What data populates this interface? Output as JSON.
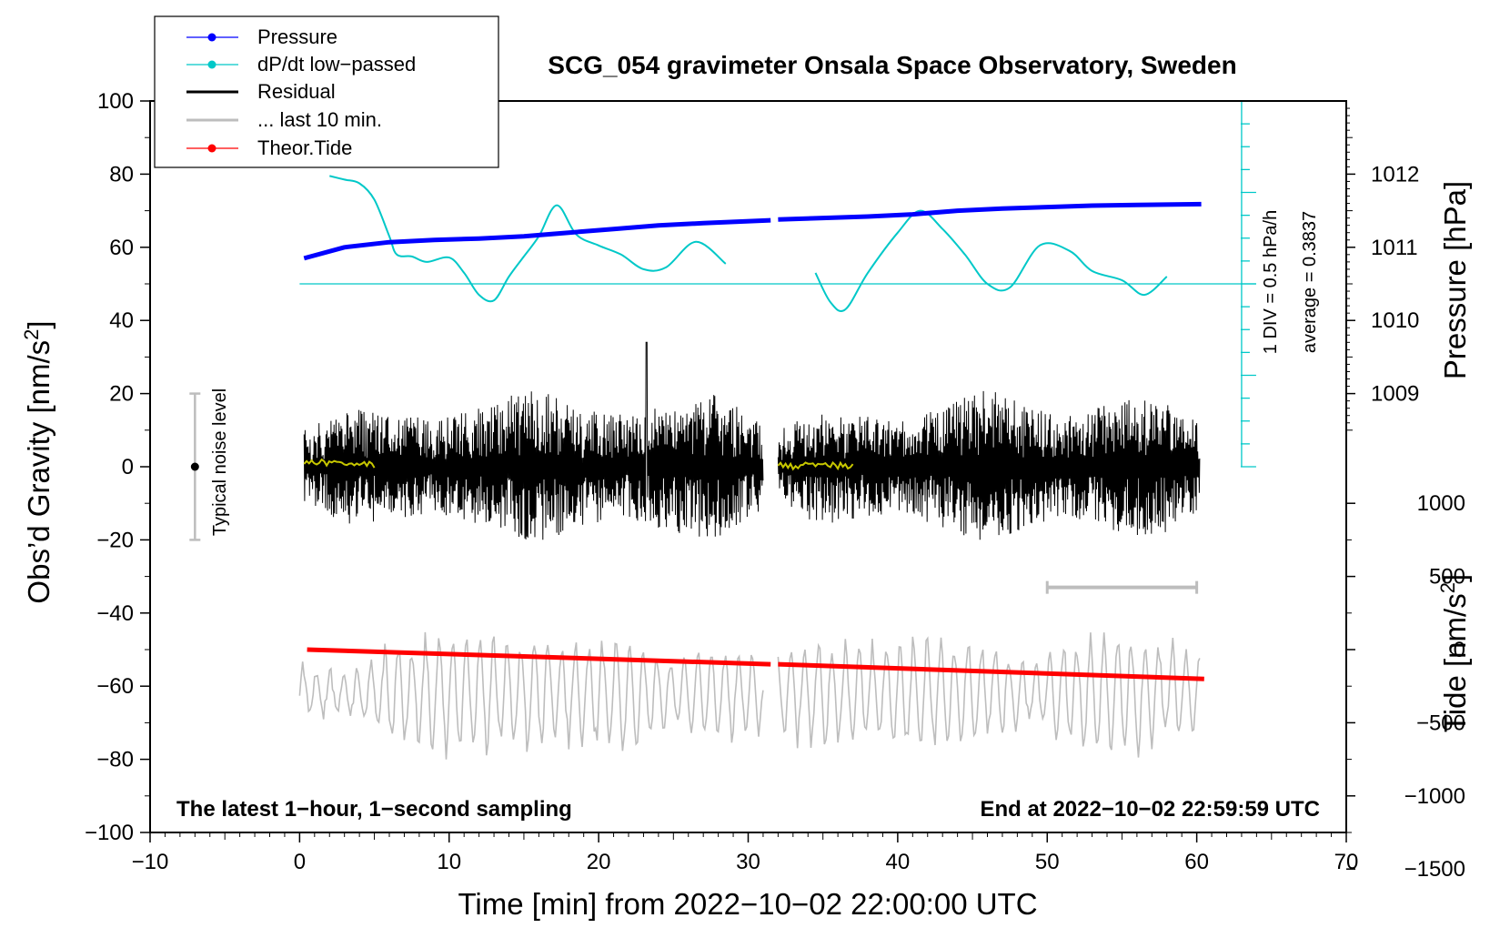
{
  "chart_data": {
    "type": "line",
    "title": "SCG_054 gravimeter Onsala Space Observatory, Sweden",
    "xlabel": "Time [min] from 2022−10−02 22:00:00 UTC",
    "ylabel": "Obs’d Gravity [nm/s",
    "ylabel_sup": "2",
    "ylabel_end": "]",
    "y2_pressure_label": "Pressure [hPa]",
    "y2_tide_label": "Tide [nm/s",
    "y2_tide_sup": "2",
    "y2_tide_end": "]",
    "xlim": [
      -10,
      70
    ],
    "ylim": [
      -100,
      100
    ],
    "x_ticks": [
      "−10",
      "0",
      "10",
      "20",
      "30",
      "40",
      "50",
      "60",
      "70"
    ],
    "x_tick_values": [
      -10,
      0,
      10,
      20,
      30,
      40,
      50,
      60,
      70
    ],
    "y_ticks": [
      "100",
      "80",
      "60",
      "40",
      "20",
      "0",
      "−20",
      "−40",
      "−60",
      "−80",
      "−100"
    ],
    "y_tick_values": [
      100,
      80,
      60,
      40,
      20,
      0,
      -20,
      -40,
      -60,
      -80,
      -100
    ],
    "pressure_axis": {
      "ticks": [
        "1012",
        "1011",
        "1010",
        "1009"
      ],
      "tick_values": [
        1012,
        1011,
        1010,
        1009
      ],
      "reference": {
        "hpa": 1010,
        "gravity": 40
      },
      "gravity_per_hpa": 20
    },
    "tide_axis": {
      "ticks": [
        "1000",
        "500",
        "0",
        "−500",
        "−1000",
        "−1500"
      ],
      "tick_values": [
        1000,
        500,
        0,
        -500,
        -1000,
        -1500
      ],
      "reference": {
        "tide": 0,
        "gravity": -50
      },
      "gravity_per_tide": 0.04
    },
    "legend": [
      {
        "label": "Pressure",
        "color": "#0000ff",
        "marker": true
      },
      {
        "label": "dP/dt low−passed",
        "color": "#00c8c8",
        "marker": true
      },
      {
        "label": "Residual",
        "color": "#000000",
        "marker": false
      },
      {
        "label": "... last 10 min.",
        "color": "#bdbdbd",
        "marker": false
      },
      {
        "label": "Theor.Tide",
        "color": "#ff0000",
        "marker": true
      }
    ],
    "annotations": {
      "left_note": "The latest 1−hour, 1−second sampling",
      "right_note": "End at 2022−10−02 22:59:59 UTC",
      "noise_label": "Typical noise level",
      "dpdt_scale": "1 DIV = 0.5 hPa/h",
      "dpdt_average": "average = 0.3837"
    },
    "colors": {
      "pressure": "#0000ff",
      "dpdt": "#00c8c8",
      "residual": "#000000",
      "residual_smooth": "#c8c800",
      "last10": "#bdbdbd",
      "tide": "#ff0000",
      "noise": "#bdbdbd"
    },
    "noise_bar": {
      "x": -7,
      "y_min": -20,
      "y_max": 20
    },
    "last10_bar": {
      "x0": 50,
      "x1": 60,
      "y": -33
    },
    "dpdt_axis": {
      "x": 63,
      "y_min": 0,
      "y_max": 100,
      "divisions": 16,
      "baseline": 50
    },
    "series": {
      "pressure": [
        {
          "x": [
            0.3,
            3,
            6,
            9,
            12,
            15,
            18,
            21,
            24,
            27,
            31.5
          ],
          "y": [
            1010.85,
            1011.0,
            1011.07,
            1011.1,
            1011.12,
            1011.15,
            1011.2,
            1011.25,
            1011.3,
            1011.33,
            1011.37
          ]
        },
        {
          "x": [
            32,
            35,
            38,
            41,
            44,
            47,
            50,
            53,
            56,
            60.3
          ],
          "y": [
            1011.38,
            1011.4,
            1011.42,
            1011.45,
            1011.5,
            1011.53,
            1011.55,
            1011.57,
            1011.58,
            1011.59
          ]
        }
      ],
      "dpdt": [
        {
          "x": [
            2,
            3,
            4,
            5,
            6,
            6.5,
            7.5,
            8.5,
            10,
            11,
            12,
            13,
            14,
            15,
            16,
            17.2,
            18.5,
            20,
            21.5,
            23,
            24.5,
            26.5,
            28.5
          ],
          "y": [
            79.5,
            78.5,
            77.5,
            73,
            63,
            58,
            57.5,
            56,
            57.2,
            53,
            47,
            45.5,
            52,
            57.5,
            63,
            71.5,
            63.5,
            60.5,
            58,
            54,
            54.5,
            61.5,
            55.5
          ]
        },
        {
          "x": [
            34.5,
            35.5,
            36.5,
            38,
            40,
            41.5,
            43,
            44.5,
            46,
            47.5,
            49.5,
            51.5,
            53,
            55,
            56.5,
            58
          ],
          "y": [
            53,
            45,
            43,
            53,
            64,
            70,
            65,
            58,
            50,
            49,
            60.5,
            59,
            53.5,
            51,
            47,
            52
          ]
        }
      ],
      "residual_smooth": [
        {
          "x": [
            0.3,
            5,
            10,
            15,
            20,
            25,
            31
          ],
          "y": [
            1.5,
            0.5,
            0.8,
            0.8,
            0.3,
            0.2,
            0.0
          ]
        },
        {
          "x": [
            32,
            37,
            42,
            47,
            52,
            57,
            60.2
          ],
          "y": [
            0.2,
            0.4,
            0.2,
            0.3,
            0.1,
            -0.2,
            -0.3
          ]
        }
      ],
      "tide": [
        {
          "x": [
            0.5,
            31.5
          ],
          "y": [
            0,
            -100
          ]
        },
        {
          "x": [
            32,
            60.5
          ],
          "y": [
            -100,
            -200
          ]
        }
      ],
      "residual_envelope": [
        {
          "x": [
            0.3,
            31
          ],
          "amplitude": [
            10,
            16,
            14,
            13,
            17,
            22,
            16,
            14,
            18,
            20,
            12
          ],
          "spike": {
            "x": 23.2,
            "y": 34
          }
        },
        {
          "x": [
            32,
            60.2
          ],
          "amplitude": [
            10,
            16,
            14,
            13,
            17,
            22,
            16,
            14,
            18,
            20,
            12
          ]
        }
      ],
      "last10_envelope": [
        {
          "x": [
            0,
            31
          ],
          "center": -62,
          "amplitude": [
            8,
            5,
            12,
            16,
            15,
            14,
            14,
            15,
            9,
            12,
            10
          ]
        },
        {
          "x": [
            32,
            60.2
          ],
          "center": -62,
          "amplitude": [
            10,
            15,
            13,
            14,
            15,
            12,
            8,
            14,
            16,
            13,
            12
          ]
        }
      ]
    }
  }
}
